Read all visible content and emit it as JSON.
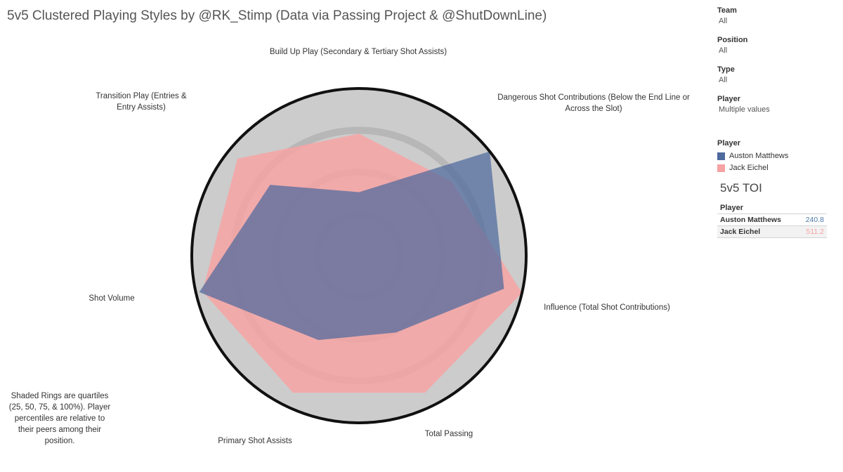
{
  "title": "5v5 Clustered Playing Styles by @RK_Stimp (Data via Passing Project & @ShutDownLine)",
  "filters": [
    {
      "label": "Team",
      "value": "All"
    },
    {
      "label": "Position",
      "value": "All"
    },
    {
      "label": "Type",
      "value": "All"
    },
    {
      "label": "Player",
      "value": "Multiple values"
    }
  ],
  "legend": {
    "title": "Player",
    "items": [
      {
        "label": "Auston Matthews",
        "color": "#4e6a9e"
      },
      {
        "label": "Jack Eichel",
        "color": "#f7a3a3"
      }
    ]
  },
  "toi": {
    "title": "5v5 TOI",
    "header": "Player",
    "rows": [
      {
        "player": "Auston Matthews",
        "value": "240.8",
        "color": "#4e79a7"
      },
      {
        "player": "Jack Eichel",
        "value": "511.2",
        "color": "#f7a3a3"
      }
    ]
  },
  "note": "Shaded Rings are quartiles (25, 50, 75, & 100%). Player percentiles are relative to their peers among their position.",
  "chart_data": {
    "type": "radar",
    "title": "5v5 Clustered Playing Styles by @RK_Stimp (Data via Passing Project & @ShutDownLine)",
    "axes": [
      "Build Up Play (Secondary & Tertiary Shot Assists)",
      "Dangerous Shot Contributions (Below the End Line or Across the Slot)",
      "Influence (Total Shot Contributions)",
      "Total Passing",
      "Primary Shot Assists",
      "Shot Volume",
      "Transition Play (Entries & Entry Assists)"
    ],
    "rings": [
      25,
      50,
      75,
      100
    ],
    "range": [
      0,
      100
    ],
    "series": [
      {
        "name": "Jack Eichel",
        "color": "#f7a3a3",
        "values": [
          73,
          71,
          100,
          91,
          91,
          96,
          93
        ]
      },
      {
        "name": "Auston Matthews",
        "color": "#4e6a9e",
        "values": [
          38,
          100,
          89,
          51,
          56,
          98,
          68
        ]
      }
    ]
  }
}
